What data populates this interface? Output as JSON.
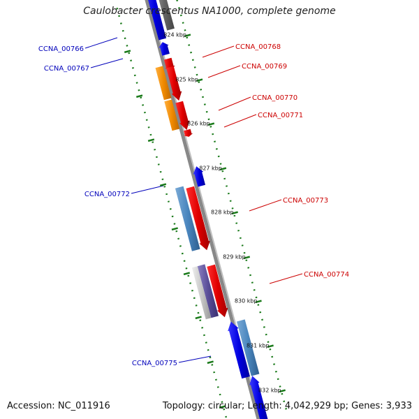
{
  "title": "Caulobacter crescentus NA1000, complete genome",
  "footer": {
    "accession": "Accession: NC_011916",
    "summary": "Topology: circular; Length: 4,042,929 bp; Genes: 3,933"
  },
  "colors": {
    "forward_label": "#cc0000",
    "reverse_label": "#0000bb",
    "backbone": "#888888",
    "tick_dots": "#1a7a1a"
  },
  "scale_ticks": [
    "824 kbp",
    "825 kbp",
    "826 kbp",
    "827 kbp",
    "828 kbp",
    "829 kbp",
    "830 kbp",
    "831 kbp",
    "832 kbp"
  ],
  "gene_labels": [
    {
      "name": "CCNA_00766",
      "strand": "reverse"
    },
    {
      "name": "CCNA_00767",
      "strand": "reverse"
    },
    {
      "name": "CCNA_00768",
      "strand": "forward"
    },
    {
      "name": "CCNA_00769",
      "strand": "forward"
    },
    {
      "name": "CCNA_00770",
      "strand": "forward"
    },
    {
      "name": "CCNA_00771",
      "strand": "forward"
    },
    {
      "name": "CCNA_00772",
      "strand": "reverse"
    },
    {
      "name": "CCNA_00773",
      "strand": "forward"
    },
    {
      "name": "CCNA_00774",
      "strand": "forward"
    },
    {
      "name": "CCNA_00775",
      "strand": "reverse"
    }
  ]
}
